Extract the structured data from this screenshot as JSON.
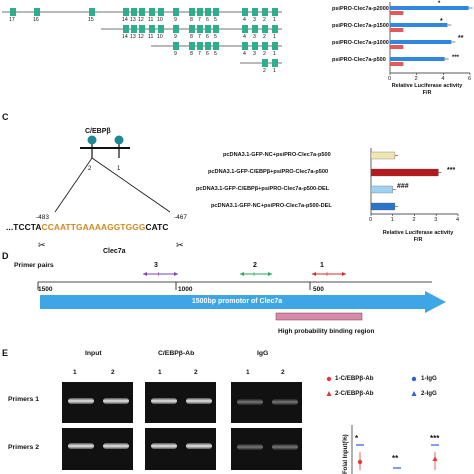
{
  "panelB": {
    "exon_numbers_rows": [
      [
        "17",
        "16",
        "15",
        "14",
        "13",
        "12",
        "11",
        "10",
        "9",
        "8",
        "7",
        "6",
        "5",
        "4",
        "3",
        "2",
        "1"
      ],
      [
        "14",
        "13",
        "12",
        "11",
        "10",
        "9",
        "8",
        "7",
        "6",
        "5",
        "4",
        "3",
        "2",
        "1"
      ],
      [
        "9",
        "8",
        "7",
        "6",
        "5",
        "4",
        "3",
        "2",
        "1"
      ],
      [
        "2",
        "1"
      ]
    ],
    "constructs": [
      "psiPRO-Clec7a-p2000",
      "psiPRO-Clec7a-p1500",
      "psiPRO-Clec7a-p1000",
      "psiPRO-Clec7a-p500"
    ],
    "significance": [
      "*",
      "*",
      "**",
      "***"
    ],
    "xticks": [
      "0",
      "2",
      "4",
      "6"
    ],
    "xlabel_line1": "Relative Luciferase activity",
    "xlabel_line2": "F/R"
  },
  "panelC": {
    "letter": "C",
    "tf_label": "C/EBPβ",
    "site_numbers": [
      "2",
      "1"
    ],
    "coord_left": "-483",
    "coord_right": "-467",
    "seq_prefix": "...TCCTA",
    "seq_core": "CCAATTGAAAAGGTGGG",
    "seq_suffix": "CATC",
    "gene": "Clec7a",
    "constructs": [
      "pcDNA3.1-GFP-NC+psiPRO-Clec7a-p500",
      "pcDNA3.1-GFP-C/EBPβ+psiPRO-Clec7a-p500",
      "pcDNA3.1-GFP-C/EBPβ+psiPRO-Clec7a-p500-DEL",
      "pcDNA3.1-GFP-NC+psiPRO-Clec7a-p500-DEL"
    ],
    "significance": "***",
    "significance2": "###",
    "xticks": [
      "0",
      "1",
      "2",
      "3",
      "4"
    ],
    "xlabel_line1": "Relative Luciferase activity",
    "xlabel_line2": "F/R"
  },
  "panelD": {
    "letter": "D",
    "title": "Primer pairs",
    "primers": [
      "3",
      "2",
      "1"
    ],
    "ticks": [
      "1500",
      "1000",
      "500"
    ],
    "arrow_label": "1500bp promotor of Clec7a",
    "region_label": "High probability binding region"
  },
  "panelE": {
    "letter": "E",
    "groups": [
      "Input",
      "C/EBPβ-Ab",
      "IgG"
    ],
    "lanes": [
      "1",
      "2",
      "1",
      "2",
      "1",
      "2"
    ],
    "rows": [
      "Primers 1",
      "Primers 2"
    ],
    "legend": [
      "1-C/EBPβ-Ab",
      "1-IgG",
      "2-C/EBPβ-Ab",
      "2-IgG"
    ],
    "ylabel": "Folal Input(%)",
    "stars": [
      "*",
      "**",
      "***"
    ]
  },
  "colors": {
    "exon": "#2fae8e",
    "bar_blue": "#2f87e0",
    "bar_red": "#e05a5a",
    "bar_cream": "#efe5b0",
    "bar_darkred": "#b5191e",
    "bar_lightblue": "#9fd2f0",
    "bar_blue2": "#2a74c9",
    "seq_orange": "#d18a1f",
    "promoter_blue": "#3fa6e6",
    "region_pink": "#d58aa8",
    "primer_purple": "#7a45b8",
    "primer_green": "#27a55a",
    "primer_red": "#d82a2a"
  },
  "chart_data": [
    {
      "type": "bar",
      "categories": [
        "psiPRO-Clec7a-p2000",
        "psiPRO-Clec7a-p1500",
        "psiPRO-Clec7a-p1000",
        "psiPRO-Clec7a-p500"
      ],
      "series": [
        {
          "values": [
            5.9,
            4.3,
            4.6,
            4.1
          ]
        },
        {
          "values": [
            1.0,
            1.0,
            1.0,
            1.0
          ]
        }
      ],
      "xlabel": "Relative Luciferase activity F/R",
      "xlim": [
        0,
        6
      ],
      "orientation": "horizontal"
    },
    {
      "type": "bar",
      "categories": [
        "pcDNA3.1-GFP-NC+psiPRO-Clec7a-p500",
        "pcDNA3.1-GFP-C/EBPβ+psiPRO-Clec7a-p500",
        "pcDNA3.1-GFP-C/EBPβ+psiPRO-Clec7a-p500-DEL",
        "pcDNA3.1-GFP-NC+psiPRO-Clec7a-p500-DEL"
      ],
      "values": [
        1.1,
        3.1,
        1.0,
        1.1
      ],
      "xlabel": "Relative Luciferase activity F/R",
      "xlim": [
        0,
        4
      ],
      "orientation": "horizontal"
    }
  ]
}
